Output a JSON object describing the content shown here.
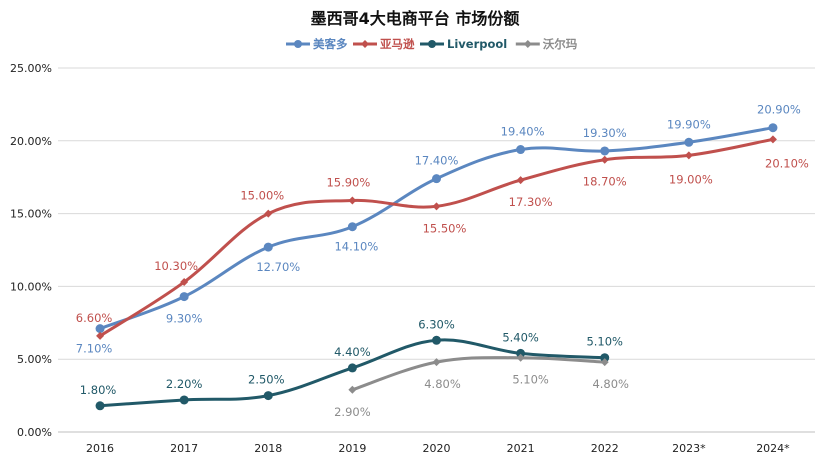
{
  "chart_data": {
    "type": "line",
    "title": "墨西哥4大电商平台 市场份额",
    "categories": [
      "2016",
      "2017",
      "2018",
      "2019",
      "2020",
      "2021",
      "2022",
      "2023*",
      "2024*"
    ],
    "ylim": [
      0,
      25
    ],
    "yticks": [
      0,
      5,
      10,
      15,
      20,
      25
    ],
    "ytick_labels": [
      "0.00%",
      "5.00%",
      "10.00%",
      "15.00%",
      "20.00%",
      "25.00%"
    ],
    "grid": true,
    "legend_position": "top-center",
    "series": [
      {
        "name": "美客多",
        "color": "#5b87c0",
        "marker": "circle",
        "values": [
          7.1,
          9.3,
          12.7,
          14.1,
          17.4,
          19.4,
          19.3,
          19.9,
          20.9
        ],
        "labels": [
          "7.10%",
          "9.30%",
          "12.70%",
          "14.10%",
          "17.40%",
          "19.40%",
          "19.30%",
          "19.90%",
          "20.90%"
        ]
      },
      {
        "name": "亚马逊",
        "color": "#c0504d",
        "marker": "diamond",
        "values": [
          6.6,
          10.3,
          15.0,
          15.9,
          15.5,
          17.3,
          18.7,
          19.0,
          20.1
        ],
        "labels": [
          "6.60%",
          "10.30%",
          "15.00%",
          "15.90%",
          "15.50%",
          "17.30%",
          "18.70%",
          "19.00%",
          "20.10%"
        ]
      },
      {
        "name": "Liverpool",
        "color": "#215968",
        "marker": "circle",
        "values": [
          1.8,
          2.2,
          2.5,
          4.4,
          6.3,
          5.4,
          5.1,
          null,
          null
        ],
        "labels": [
          "1.80%",
          "2.20%",
          "2.50%",
          "4.40%",
          "6.30%",
          "5.40%",
          "5.10%",
          null,
          null
        ]
      },
      {
        "name": "沃尔玛",
        "color": "#8c8c8c",
        "marker": "diamond",
        "values": [
          null,
          null,
          null,
          2.9,
          4.8,
          5.1,
          4.8,
          null,
          null
        ],
        "labels": [
          null,
          null,
          null,
          "2.90%",
          "4.80%",
          "5.10%",
          "4.80%",
          null,
          null
        ]
      }
    ]
  }
}
